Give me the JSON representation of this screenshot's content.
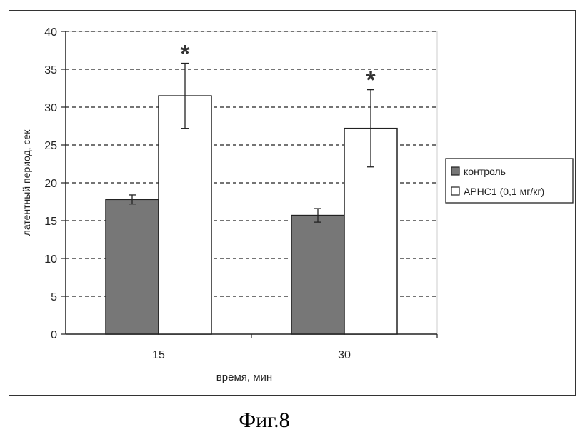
{
  "caption": "Фиг.8",
  "chart_data": {
    "type": "bar",
    "categories": [
      "15",
      "30"
    ],
    "series": [
      {
        "name": "контроль",
        "values": [
          17.8,
          15.7
        ],
        "errors": [
          0.6,
          0.9
        ],
        "color": "#777777"
      },
      {
        "name": "APHC1 (0,1 мг/кг)",
        "values": [
          31.5,
          27.2
        ],
        "errors": [
          4.3,
          5.1
        ],
        "color": "#ffffff"
      }
    ],
    "annotations": [
      {
        "text": "*",
        "series": 1,
        "category": 0
      },
      {
        "text": "*",
        "series": 1,
        "category": 1
      }
    ],
    "xlabel": "время, мин",
    "ylabel": "латентный период, сек",
    "ylim": [
      0,
      40
    ],
    "yticks": [
      "0",
      "5",
      "10",
      "15",
      "20",
      "25",
      "30",
      "35",
      "40"
    ],
    "grid": true,
    "legend": "right"
  }
}
